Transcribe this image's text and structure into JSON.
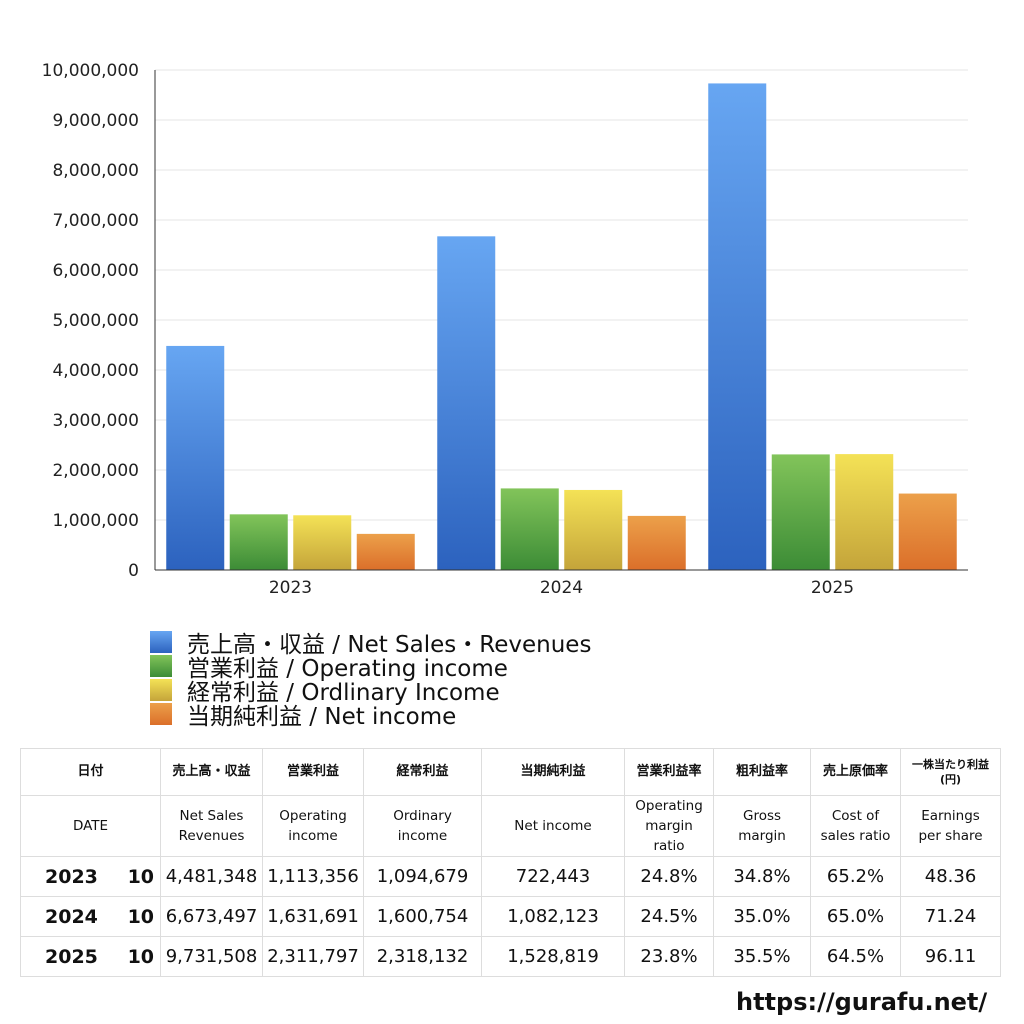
{
  "chart_data": {
    "type": "bar",
    "categories": [
      "2023",
      "2024",
      "2025"
    ],
    "series": [
      {
        "name": "売上高・収益 / Net Sales・Revenues",
        "values": [
          4481348,
          6673497,
          9731508
        ],
        "color_top": "#67a6f2",
        "color_bottom": "#2c62be"
      },
      {
        "name": "営業利益 / Operating income",
        "values": [
          1113356,
          1631691,
          2311797
        ],
        "color_top": "#82c45a",
        "color_bottom": "#3c8c36"
      },
      {
        "name": "経常利益 / Ordlinary Income",
        "values": [
          1094679,
          1600754,
          2318132
        ],
        "color_top": "#f4e256",
        "color_bottom": "#c4a43a"
      },
      {
        "name": "当期純利益 / Net income",
        "values": [
          722443,
          1082123,
          1528819
        ],
        "color_top": "#eca04a",
        "color_bottom": "#db6f2a"
      }
    ],
    "ylim": [
      0,
      10000000
    ],
    "yticks": [
      0,
      1000000,
      2000000,
      3000000,
      4000000,
      5000000,
      6000000,
      7000000,
      8000000,
      9000000,
      10000000
    ],
    "ytick_labels": [
      "0",
      "1,000,000",
      "2,000,000",
      "3,000,000",
      "4,000,000",
      "5,000,000",
      "6,000,000",
      "7,000,000",
      "8,000,000",
      "9,000,000",
      "10,000,000"
    ],
    "grid": true,
    "legend_position": "bottom-left"
  },
  "table": {
    "header_jp": {
      "date": "日付",
      "sales": "売上高・収益",
      "op": "営業利益",
      "ord": "経常利益",
      "net": "当期純利益",
      "opm": "営業利益率",
      "gm": "粗利益率",
      "cost": "売上原価率",
      "eps_1": "一株当たり利益",
      "eps_2": "(円)"
    },
    "header_en": {
      "date": "DATE",
      "sales_1": "Net Sales",
      "sales_2": "Revenues",
      "op_1": "Operating",
      "op_2": "income",
      "ord_1": "Ordinary",
      "ord_2": "income",
      "net": "Net income",
      "opm_1": "Operating",
      "opm_2": "margin",
      "opm_3": "ratio",
      "gm_1": "Gross",
      "gm_2": "margin",
      "cost_1": "Cost of",
      "cost_2": "sales ratio",
      "eps_1": "Earnings",
      "eps_2": "per share"
    },
    "rows": [
      {
        "year": "2023",
        "month": "10",
        "sales": "4,481,348",
        "op": "1,113,356",
        "ord": "1,094,679",
        "net": "722,443",
        "opm": "24.8%",
        "gm": "34.8%",
        "cost": "65.2%",
        "eps": "48.36"
      },
      {
        "year": "2024",
        "month": "10",
        "sales": "6,673,497",
        "op": "1,631,691",
        "ord": "1,600,754",
        "net": "1,082,123",
        "opm": "24.5%",
        "gm": "35.0%",
        "cost": "65.0%",
        "eps": "71.24"
      },
      {
        "year": "2025",
        "month": "10",
        "sales": "9,731,508",
        "op": "2,311,797",
        "ord": "2,318,132",
        "net": "1,528,819",
        "opm": "23.8%",
        "gm": "35.5%",
        "cost": "64.5%",
        "eps": "96.11"
      }
    ]
  },
  "footer": {
    "url": "https://gurafu.net/"
  }
}
